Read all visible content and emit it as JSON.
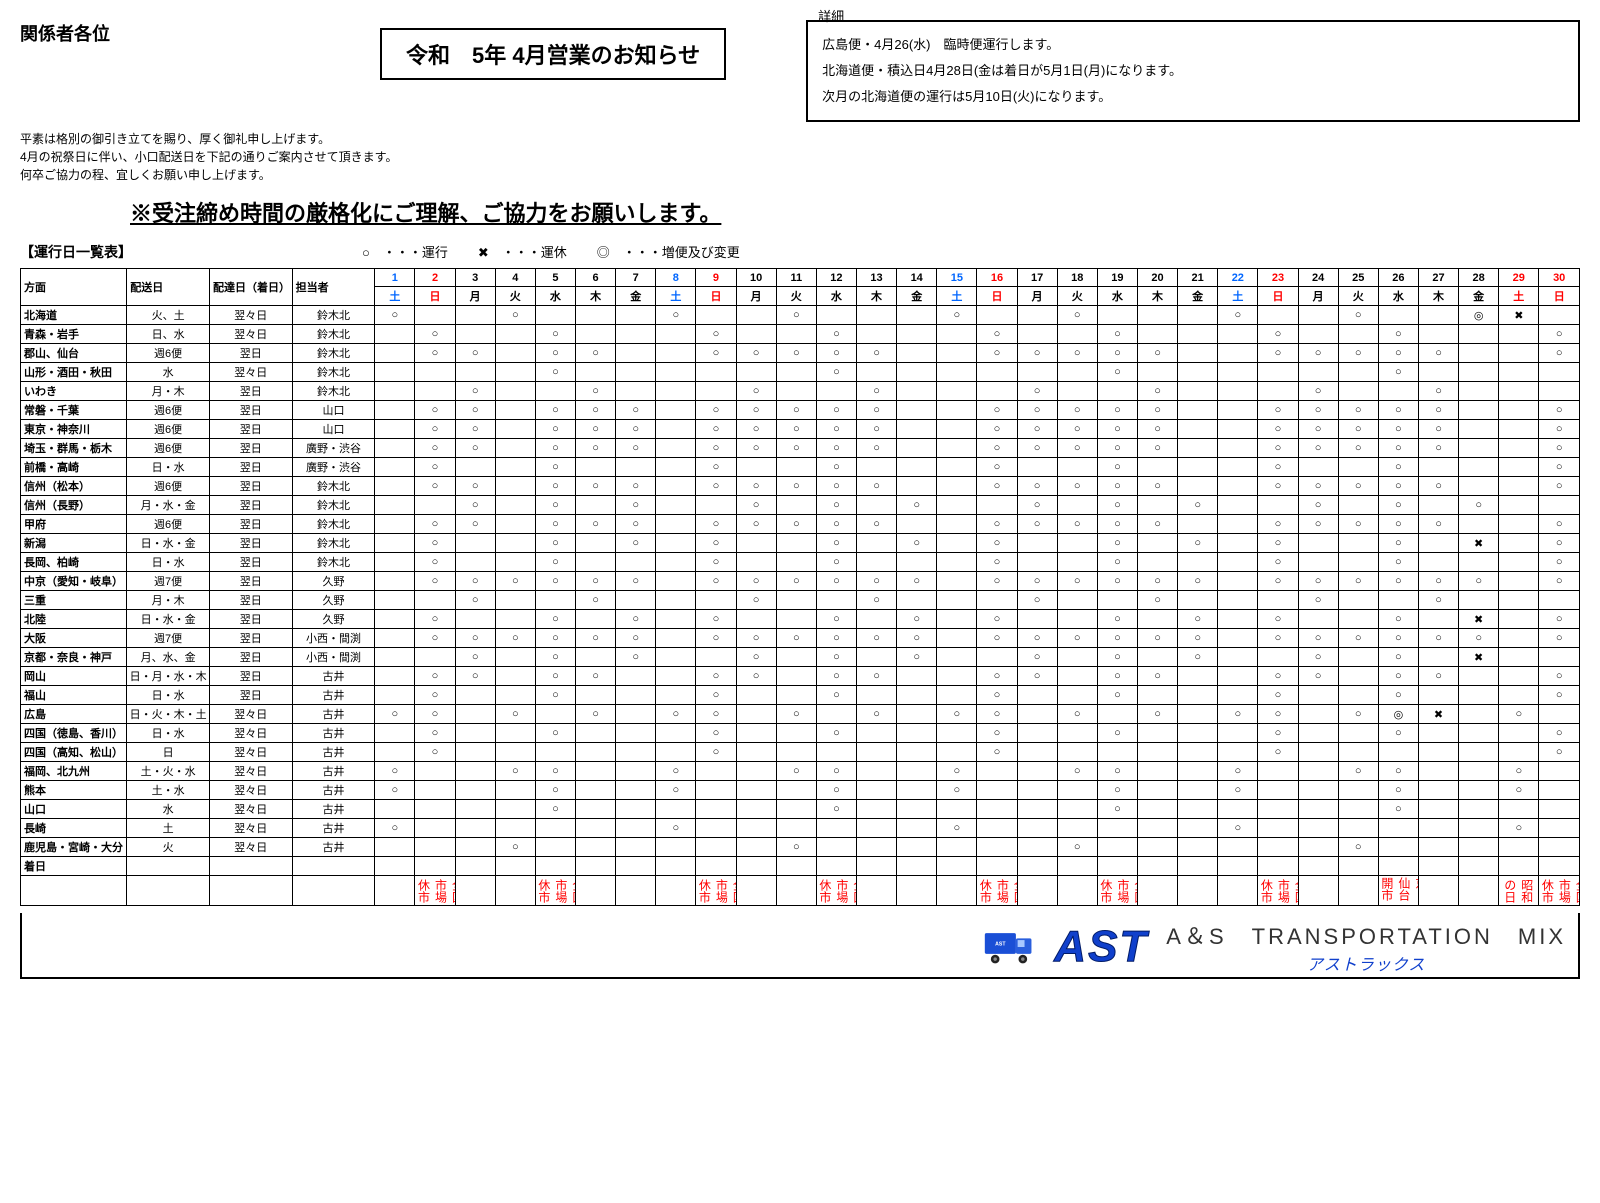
{
  "recipient": "関係者各位",
  "greeting": [
    "平素は格別の御引き立てを賜り、厚く御礼申し上げます。",
    "4月の祝祭日に伴い、小口配送日を下記の通りご案内させて頂きます。",
    "何卒ご協力の程、宜しくお願い申し上げます。"
  ],
  "title": "令和　5年 4月営業のお知らせ",
  "detail_label": "詳細",
  "details": [
    "広島便・4月26(水)　臨時便運行します。",
    "北海道便・積込日4月28日(金は着日が5月1日(月)になります。",
    "次月の北海道便の運行は5月10日(火)になります。"
  ],
  "notice": "※受注締め時間の厳格化にご理解、ご協力をお願いします。",
  "table_title": "【運行日一覧表】",
  "legend": {
    "run": "○　・・・運行",
    "stop": "✖　・・・運休",
    "change": "◎　・・・増便及び変更"
  },
  "headers": [
    "方面",
    "配送日",
    "配達日（着日）",
    "担当者"
  ],
  "days": [
    {
      "n": "1",
      "w": "土",
      "c": "sat"
    },
    {
      "n": "2",
      "w": "日",
      "c": "sun"
    },
    {
      "n": "3",
      "w": "月",
      "c": ""
    },
    {
      "n": "4",
      "w": "火",
      "c": ""
    },
    {
      "n": "5",
      "w": "水",
      "c": ""
    },
    {
      "n": "6",
      "w": "木",
      "c": ""
    },
    {
      "n": "7",
      "w": "金",
      "c": ""
    },
    {
      "n": "8",
      "w": "土",
      "c": "sat"
    },
    {
      "n": "9",
      "w": "日",
      "c": "sun"
    },
    {
      "n": "10",
      "w": "月",
      "c": ""
    },
    {
      "n": "11",
      "w": "火",
      "c": ""
    },
    {
      "n": "12",
      "w": "水",
      "c": ""
    },
    {
      "n": "13",
      "w": "木",
      "c": ""
    },
    {
      "n": "14",
      "w": "金",
      "c": ""
    },
    {
      "n": "15",
      "w": "土",
      "c": "sat"
    },
    {
      "n": "16",
      "w": "日",
      "c": "sun"
    },
    {
      "n": "17",
      "w": "月",
      "c": ""
    },
    {
      "n": "18",
      "w": "火",
      "c": ""
    },
    {
      "n": "19",
      "w": "水",
      "c": ""
    },
    {
      "n": "20",
      "w": "木",
      "c": ""
    },
    {
      "n": "21",
      "w": "金",
      "c": ""
    },
    {
      "n": "22",
      "w": "土",
      "c": "sat"
    },
    {
      "n": "23",
      "w": "日",
      "c": "sun"
    },
    {
      "n": "24",
      "w": "月",
      "c": ""
    },
    {
      "n": "25",
      "w": "火",
      "c": ""
    },
    {
      "n": "26",
      "w": "水",
      "c": ""
    },
    {
      "n": "27",
      "w": "木",
      "c": ""
    },
    {
      "n": "28",
      "w": "金",
      "c": ""
    },
    {
      "n": "29",
      "w": "土",
      "c": "sun"
    },
    {
      "n": "30",
      "w": "日",
      "c": "sun"
    }
  ],
  "rows": [
    {
      "r": "北海道",
      "s": "火、土",
      "a": "翌々日",
      "p": "鈴木北",
      "d": [
        "○",
        "",
        "",
        "○",
        "",
        "",
        "",
        "○",
        "",
        "",
        "○",
        "",
        "",
        "",
        "○",
        "",
        "",
        "○",
        "",
        "",
        "",
        "○",
        "",
        "",
        "○",
        "",
        "",
        "◎",
        "✖",
        ""
      ]
    },
    {
      "r": "青森・岩手",
      "s": "日、水",
      "a": "翌々日",
      "p": "鈴木北",
      "d": [
        "",
        "○",
        "",
        "",
        "○",
        "",
        "",
        "",
        "○",
        "",
        "",
        "○",
        "",
        "",
        "",
        "○",
        "",
        "",
        "○",
        "",
        "",
        "",
        "○",
        "",
        "",
        "○",
        "",
        "",
        "",
        "○"
      ]
    },
    {
      "r": "郡山、仙台",
      "s": "週6便",
      "a": "翌日",
      "p": "鈴木北",
      "d": [
        "",
        "○",
        "○",
        "",
        "○",
        "○",
        "",
        "",
        "○",
        "○",
        "○",
        "○",
        "○",
        "",
        "",
        "○",
        "○",
        "○",
        "○",
        "○",
        "",
        "",
        "○",
        "○",
        "○",
        "○",
        "○",
        "",
        "",
        "○"
      ]
    },
    {
      "r": "山形・酒田・秋田",
      "s": "水",
      "a": "翌々日",
      "p": "鈴木北",
      "d": [
        "",
        "",
        "",
        "",
        "○",
        "",
        "",
        "",
        "",
        "",
        "",
        "○",
        "",
        "",
        "",
        "",
        "",
        "",
        "○",
        "",
        "",
        "",
        "",
        "",
        "",
        "○",
        "",
        "",
        "",
        ""
      ]
    },
    {
      "r": "いわき",
      "s": "月・木",
      "a": "翌日",
      "p": "鈴木北",
      "d": [
        "",
        "",
        "○",
        "",
        "",
        "○",
        "",
        "",
        "",
        "○",
        "",
        "",
        "○",
        "",
        "",
        "",
        "○",
        "",
        "",
        "○",
        "",
        "",
        "",
        "○",
        "",
        "",
        "○",
        "",
        "",
        ""
      ]
    },
    {
      "r": "常磐・千葉",
      "s": "週6便",
      "a": "翌日",
      "p": "山口",
      "d": [
        "",
        "○",
        "○",
        "",
        "○",
        "○",
        "○",
        "",
        "○",
        "○",
        "○",
        "○",
        "○",
        "",
        "",
        "○",
        "○",
        "○",
        "○",
        "○",
        "",
        "",
        "○",
        "○",
        "○",
        "○",
        "○",
        "",
        "",
        "○"
      ]
    },
    {
      "r": "東京・神奈川",
      "s": "週6便",
      "a": "翌日",
      "p": "山口",
      "d": [
        "",
        "○",
        "○",
        "",
        "○",
        "○",
        "○",
        "",
        "○",
        "○",
        "○",
        "○",
        "○",
        "",
        "",
        "○",
        "○",
        "○",
        "○",
        "○",
        "",
        "",
        "○",
        "○",
        "○",
        "○",
        "○",
        "",
        "",
        "○"
      ]
    },
    {
      "r": "埼玉・群馬・栃木",
      "s": "週6便",
      "a": "翌日",
      "p": "廣野・渋谷",
      "d": [
        "",
        "○",
        "○",
        "",
        "○",
        "○",
        "○",
        "",
        "○",
        "○",
        "○",
        "○",
        "○",
        "",
        "",
        "○",
        "○",
        "○",
        "○",
        "○",
        "",
        "",
        "○",
        "○",
        "○",
        "○",
        "○",
        "",
        "",
        "○"
      ]
    },
    {
      "r": "前橋・高崎",
      "s": "日・水",
      "a": "翌日",
      "p": "廣野・渋谷",
      "d": [
        "",
        "○",
        "",
        "",
        "○",
        "",
        "",
        "",
        "○",
        "",
        "",
        "○",
        "",
        "",
        "",
        "○",
        "",
        "",
        "○",
        "",
        "",
        "",
        "○",
        "",
        "",
        "○",
        "",
        "",
        "",
        "○"
      ]
    },
    {
      "r": "信州（松本）",
      "s": "週6便",
      "a": "翌日",
      "p": "鈴木北",
      "d": [
        "",
        "○",
        "○",
        "",
        "○",
        "○",
        "○",
        "",
        "○",
        "○",
        "○",
        "○",
        "○",
        "",
        "",
        "○",
        "○",
        "○",
        "○",
        "○",
        "",
        "",
        "○",
        "○",
        "○",
        "○",
        "○",
        "",
        "",
        "○"
      ]
    },
    {
      "r": "信州（長野）",
      "s": "月・水・金",
      "a": "翌日",
      "p": "鈴木北",
      "d": [
        "",
        "",
        "○",
        "",
        "○",
        "",
        "○",
        "",
        "",
        "○",
        "",
        "○",
        "",
        "○",
        "",
        "",
        "○",
        "",
        "○",
        "",
        "○",
        "",
        "",
        "○",
        "",
        "○",
        "",
        "○",
        "",
        ""
      ]
    },
    {
      "r": "甲府",
      "s": "週6便",
      "a": "翌日",
      "p": "鈴木北",
      "d": [
        "",
        "○",
        "○",
        "",
        "○",
        "○",
        "○",
        "",
        "○",
        "○",
        "○",
        "○",
        "○",
        "",
        "",
        "○",
        "○",
        "○",
        "○",
        "○",
        "",
        "",
        "○",
        "○",
        "○",
        "○",
        "○",
        "",
        "",
        "○"
      ]
    },
    {
      "r": "新潟",
      "s": "日・水・金",
      "a": "翌日",
      "p": "鈴木北",
      "d": [
        "",
        "○",
        "",
        "",
        "○",
        "",
        "○",
        "",
        "○",
        "",
        "",
        "○",
        "",
        "○",
        "",
        "○",
        "",
        "",
        "○",
        "",
        "○",
        "",
        "○",
        "",
        "",
        "○",
        "",
        "✖",
        "",
        "○"
      ]
    },
    {
      "r": "長岡、柏崎",
      "s": "日・水",
      "a": "翌日",
      "p": "鈴木北",
      "d": [
        "",
        "○",
        "",
        "",
        "○",
        "",
        "",
        "",
        "○",
        "",
        "",
        "○",
        "",
        "",
        "",
        "○",
        "",
        "",
        "○",
        "",
        "",
        "",
        "○",
        "",
        "",
        "○",
        "",
        "",
        "",
        "○"
      ]
    },
    {
      "r": "中京（愛知・岐阜）",
      "s": "週7便",
      "a": "翌日",
      "p": "久野",
      "d": [
        "",
        "○",
        "○",
        "○",
        "○",
        "○",
        "○",
        "",
        "○",
        "○",
        "○",
        "○",
        "○",
        "○",
        "",
        "○",
        "○",
        "○",
        "○",
        "○",
        "○",
        "",
        "○",
        "○",
        "○",
        "○",
        "○",
        "○",
        "",
        "○"
      ]
    },
    {
      "r": "三重",
      "s": "月・木",
      "a": "翌日",
      "p": "久野",
      "d": [
        "",
        "",
        "○",
        "",
        "",
        "○",
        "",
        "",
        "",
        "○",
        "",
        "",
        "○",
        "",
        "",
        "",
        "○",
        "",
        "",
        "○",
        "",
        "",
        "",
        "○",
        "",
        "",
        "○",
        "",
        "",
        ""
      ]
    },
    {
      "r": "北陸",
      "s": "日・水・金",
      "a": "翌日",
      "p": "久野",
      "d": [
        "",
        "○",
        "",
        "",
        "○",
        "",
        "○",
        "",
        "○",
        "",
        "",
        "○",
        "",
        "○",
        "",
        "○",
        "",
        "",
        "○",
        "",
        "○",
        "",
        "○",
        "",
        "",
        "○",
        "",
        "✖",
        "",
        "○"
      ]
    },
    {
      "r": "大阪",
      "s": "週7便",
      "a": "翌日",
      "p": "小西・間渕",
      "d": [
        "",
        "○",
        "○",
        "○",
        "○",
        "○",
        "○",
        "",
        "○",
        "○",
        "○",
        "○",
        "○",
        "○",
        "",
        "○",
        "○",
        "○",
        "○",
        "○",
        "○",
        "",
        "○",
        "○",
        "○",
        "○",
        "○",
        "○",
        "",
        "○"
      ]
    },
    {
      "r": "京都・奈良・神戸",
      "s": "月、水、金",
      "a": "翌日",
      "p": "小西・間渕",
      "d": [
        "",
        "",
        "○",
        "",
        "○",
        "",
        "○",
        "",
        "",
        "○",
        "",
        "○",
        "",
        "○",
        "",
        "",
        "○",
        "",
        "○",
        "",
        "○",
        "",
        "",
        "○",
        "",
        "○",
        "",
        "✖",
        "",
        ""
      ]
    },
    {
      "r": "岡山",
      "s": "日・月・水・木",
      "a": "翌日",
      "p": "古井",
      "d": [
        "",
        "○",
        "○",
        "",
        "○",
        "○",
        "",
        "",
        "○",
        "○",
        "",
        "○",
        "○",
        "",
        "",
        "○",
        "○",
        "",
        "○",
        "○",
        "",
        "",
        "○",
        "○",
        "",
        "○",
        "○",
        "",
        "",
        "○"
      ]
    },
    {
      "r": "福山",
      "s": "日・水",
      "a": "翌日",
      "p": "古井",
      "d": [
        "",
        "○",
        "",
        "",
        "○",
        "",
        "",
        "",
        "○",
        "",
        "",
        "○",
        "",
        "",
        "",
        "○",
        "",
        "",
        "○",
        "",
        "",
        "",
        "○",
        "",
        "",
        "○",
        "",
        "",
        "",
        "○"
      ]
    },
    {
      "r": "広島",
      "s": "日・火・木・土",
      "a": "翌々日",
      "p": "古井",
      "d": [
        "○",
        "○",
        "",
        "○",
        "",
        "○",
        "",
        "○",
        "○",
        "",
        "○",
        "",
        "○",
        "",
        "○",
        "○",
        "",
        "○",
        "",
        "○",
        "",
        "○",
        "○",
        "",
        "○",
        "◎",
        "✖",
        "",
        "○",
        ""
      ]
    },
    {
      "r": "四国（徳島、香川）",
      "s": "日・水",
      "a": "翌々日",
      "p": "古井",
      "d": [
        "",
        "○",
        "",
        "",
        "○",
        "",
        "",
        "",
        "○",
        "",
        "",
        "○",
        "",
        "",
        "",
        "○",
        "",
        "",
        "○",
        "",
        "",
        "",
        "○",
        "",
        "",
        "○",
        "",
        "",
        "",
        "○"
      ]
    },
    {
      "r": "四国（高知、松山）",
      "s": "日",
      "a": "翌々日",
      "p": "古井",
      "d": [
        "",
        "○",
        "",
        "",
        "",
        "",
        "",
        "",
        "○",
        "",
        "",
        "",
        "",
        "",
        "",
        "○",
        "",
        "",
        "",
        "",
        "",
        "",
        "○",
        "",
        "",
        "",
        "",
        "",
        "",
        "○"
      ]
    },
    {
      "r": "福岡、北九州",
      "s": "土・火・水",
      "a": "翌々日",
      "p": "古井",
      "d": [
        "○",
        "",
        "",
        "○",
        "○",
        "",
        "",
        "○",
        "",
        "",
        "○",
        "○",
        "",
        "",
        "○",
        "",
        "",
        "○",
        "○",
        "",
        "",
        "○",
        "",
        "",
        "○",
        "○",
        "",
        "",
        "○",
        ""
      ]
    },
    {
      "r": "熊本",
      "s": "土・水",
      "a": "翌々日",
      "p": "古井",
      "d": [
        "○",
        "",
        "",
        "",
        "○",
        "",
        "",
        "○",
        "",
        "",
        "",
        "○",
        "",
        "",
        "○",
        "",
        "",
        "",
        "○",
        "",
        "",
        "○",
        "",
        "",
        "",
        "○",
        "",
        "",
        "○",
        ""
      ]
    },
    {
      "r": "山口",
      "s": "水",
      "a": "翌々日",
      "p": "古井",
      "d": [
        "",
        "",
        "",
        "",
        "○",
        "",
        "",
        "",
        "",
        "",
        "",
        "○",
        "",
        "",
        "",
        "",
        "",
        "",
        "○",
        "",
        "",
        "",
        "",
        "",
        "",
        "○",
        "",
        "",
        "",
        ""
      ]
    },
    {
      "r": "長崎",
      "s": "土",
      "a": "翌々日",
      "p": "古井",
      "d": [
        "○",
        "",
        "",
        "",
        "",
        "",
        "",
        "○",
        "",
        "",
        "",
        "",
        "",
        "",
        "○",
        "",
        "",
        "",
        "",
        "",
        "",
        "○",
        "",
        "",
        "",
        "",
        "",
        "",
        "○",
        ""
      ]
    },
    {
      "r": "鹿児島・宮崎・大分",
      "s": "火",
      "a": "翌々日",
      "p": "古井",
      "d": [
        "",
        "",
        "",
        "○",
        "",
        "",
        "",
        "",
        "",
        "",
        "○",
        "",
        "",
        "",
        "",
        "",
        "",
        "○",
        "",
        "",
        "",
        "",
        "",
        "",
        "○",
        "",
        "",
        "",
        "",
        ""
      ]
    }
  ],
  "arrival_label": "着日",
  "bottom_notes": {
    "2": "全国市場休市",
    "5": "全国市場休市",
    "9": "全国市場休市",
    "12": "全国市場休市",
    "16": "全国市場休市",
    "19": "全国市場休市",
    "23": "全国市場休市",
    "26": "東京・仙台開市",
    "29": "昭和の日",
    "30": "全国市場休市"
  },
  "company_en": "A＆S　TRANSPORTATION　MIX",
  "company_jp": "アストラックス",
  "logo": "AST"
}
